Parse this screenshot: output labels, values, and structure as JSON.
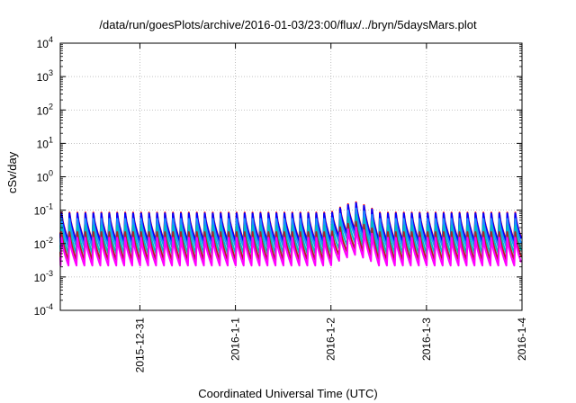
{
  "chart_data": {
    "type": "line",
    "title": "/data/run/goesPlots/archive/2016-01-03/23:00/flux/../bryn/5daysMars.plot",
    "xlabel": "Coordinated Universal Time (UTC)",
    "ylabel": "cSv/day",
    "yscale": "log",
    "ylim": [
      0.0001,
      10000
    ],
    "y_ticks": [
      {
        "base": "10",
        "exp": "-4"
      },
      {
        "base": "10",
        "exp": "-3"
      },
      {
        "base": "10",
        "exp": "-2"
      },
      {
        "base": "10",
        "exp": "-1"
      },
      {
        "base": "10",
        "exp": "0"
      },
      {
        "base": "10",
        "exp": "1"
      },
      {
        "base": "10",
        "exp": "2"
      },
      {
        "base": "10",
        "exp": "3"
      },
      {
        "base": "10",
        "exp": "4"
      }
    ],
    "xlim": [
      "2015-12-30T04:00",
      "2016-01-04T00:00"
    ],
    "x_ticks": [
      "2015-12-31",
      "2016-1-1",
      "2016-1-2",
      "2016-1-3",
      "2016-1-4"
    ],
    "grid": true,
    "legend": "none",
    "pattern": {
      "period_hours": 2,
      "description": "sawtooth: sharp rise then decay each period"
    },
    "series": [
      {
        "color": "#ff0000",
        "peak": 0.085,
        "trough": 0.012
      },
      {
        "color": "#0000ff",
        "peak": 0.08,
        "trough": 0.011
      },
      {
        "color": "#1e90ff",
        "peak": 0.055,
        "trough": 0.008
      },
      {
        "color": "#00bfbf",
        "peak": 0.035,
        "trough": 0.005
      },
      {
        "color": "#b22222",
        "peak": 0.022,
        "trough": 0.0032
      },
      {
        "color": "#ff00ff",
        "peak": 0.015,
        "trough": 0.0022
      }
    ],
    "enhancement": {
      "start": "2016-01-02T00:00",
      "end": "2016-01-02T12:00",
      "max_factor": 2.1
    }
  }
}
